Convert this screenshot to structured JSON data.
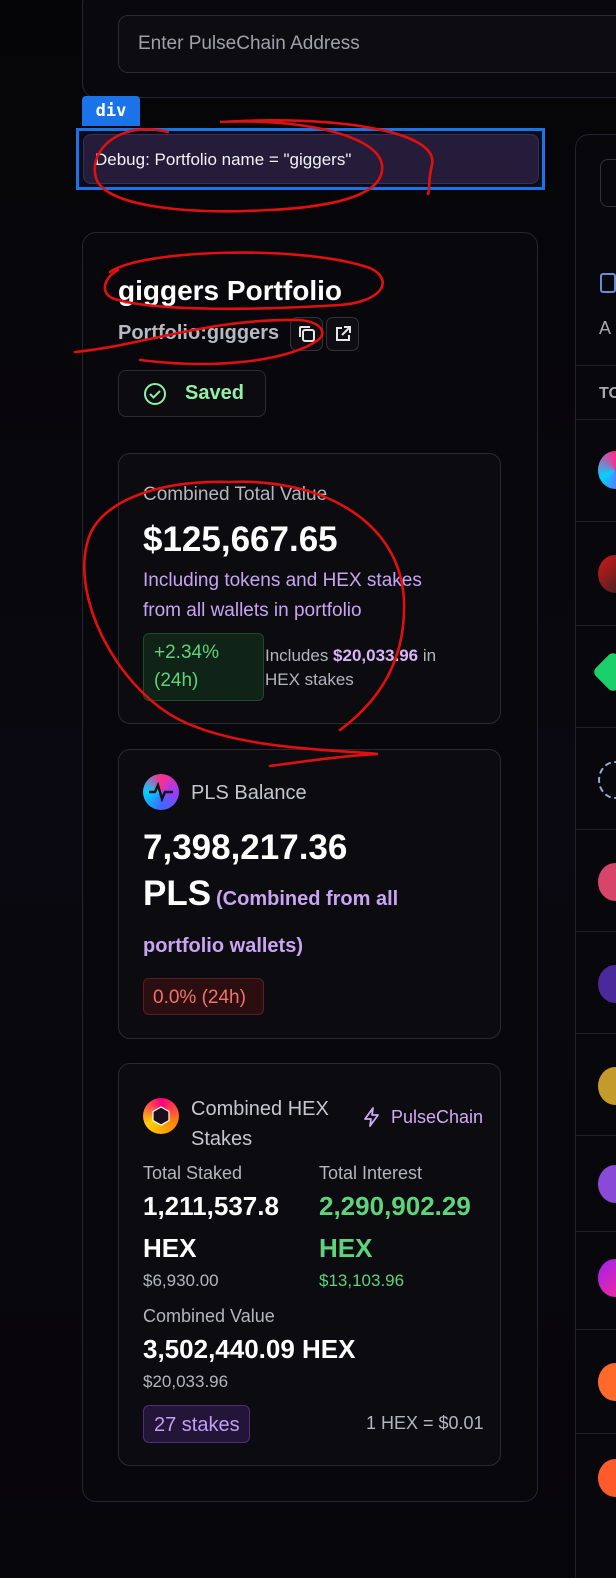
{
  "address": {
    "placeholder": "Enter PulseChain Address"
  },
  "devtools": {
    "tag": "div"
  },
  "debug": {
    "text": "Debug: Portfolio name = \"giggers\""
  },
  "portfolio": {
    "title": "giggers Portfolio",
    "subtitle": "Portfolio:giggers",
    "saved_label": "Saved"
  },
  "combined": {
    "label": "Combined Total Value",
    "value": "$125,667.65",
    "description": "Including tokens and HEX stakes from all wallets in portfolio",
    "change": "+2.34% (24h)",
    "includes_prefix": "Includes ",
    "includes_amount": "$20,033.96",
    "includes_suffix": " in HEX stakes"
  },
  "pls": {
    "label": "PLS Balance",
    "value": "7,398,217.36",
    "unit": "PLS",
    "note_line1": "(Combined from all",
    "note_line2": "portfolio wallets)",
    "change": "0.0% (24h)"
  },
  "hex": {
    "title": "Combined HEX Stakes",
    "chain": "PulseChain",
    "total_staked_label": "Total Staked",
    "total_staked_value": "1,211,537.8",
    "total_staked_unit": "HEX",
    "total_staked_usd": "$6,930.00",
    "total_interest_label": "Total Interest",
    "total_interest_value": "2,290,902.29",
    "total_interest_unit": "HEX",
    "total_interest_usd": "$13,103.96",
    "combined_label": "Combined Value",
    "combined_value": "3,502,440.09 HEX",
    "combined_usd": "$20,033.96",
    "stakes": "27 stakes",
    "rate": "1 HEX = $0.01"
  },
  "right_panel": {
    "letter_a": "A",
    "letter_t": "TO"
  },
  "colors": {
    "accent_purple": "#c9a4f2",
    "positive": "#5ed37c",
    "negative": "#f2726f",
    "devtools_blue": "#1a73e8",
    "annotation_red": "#e01010"
  }
}
